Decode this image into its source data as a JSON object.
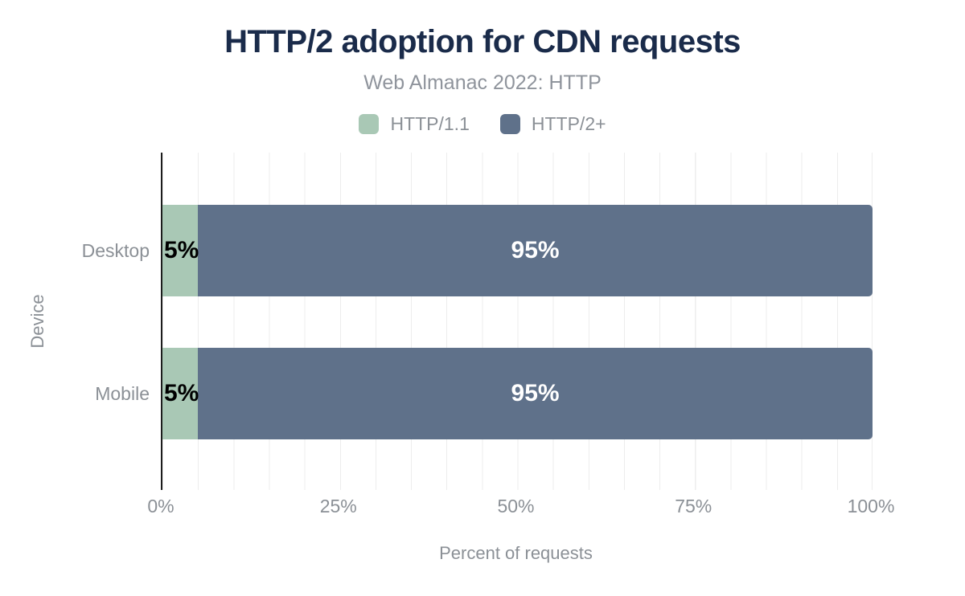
{
  "header": {
    "title": "HTTP/2 adoption for CDN requests",
    "subtitle": "Web Almanac 2022: HTTP"
  },
  "chart_data": {
    "type": "bar",
    "orientation": "horizontal",
    "stacked": true,
    "title": "HTTP/2 adoption for CDN requests",
    "subtitle": "Web Almanac 2022: HTTP",
    "categories": [
      "Desktop",
      "Mobile"
    ],
    "series": [
      {
        "name": "HTTP/1.1",
        "color": "#a9c8b5",
        "values": [
          5,
          5
        ],
        "labels": [
          "5%",
          "5%"
        ]
      },
      {
        "name": "HTTP/2+",
        "color": "#5f718a",
        "values": [
          95,
          95
        ],
        "labels": [
          "95%",
          "95%"
        ]
      }
    ],
    "xlabel": "Percent of requests",
    "ylabel": "Device",
    "xlim": [
      0,
      100
    ],
    "xticks": [
      {
        "value": 0,
        "label": "0%"
      },
      {
        "value": 25,
        "label": "25%"
      },
      {
        "value": 50,
        "label": "50%"
      },
      {
        "value": 75,
        "label": "75%"
      },
      {
        "value": 100,
        "label": "100%"
      }
    ],
    "grid": {
      "axis": "x",
      "interval_percent": 5,
      "color": "#ededed"
    },
    "legend_position": "top"
  },
  "colors": {
    "title_text": "#1a2b4a",
    "muted_text": "#8b9096",
    "http11_green": "#a9c8b5",
    "http2_slate": "#5f718a",
    "bar_label_on_green": "#000000",
    "bar_label_on_slate": "#ffffff",
    "gridline": "#ededed",
    "axis_line": "#1c1c1c",
    "background": "#ffffff"
  }
}
